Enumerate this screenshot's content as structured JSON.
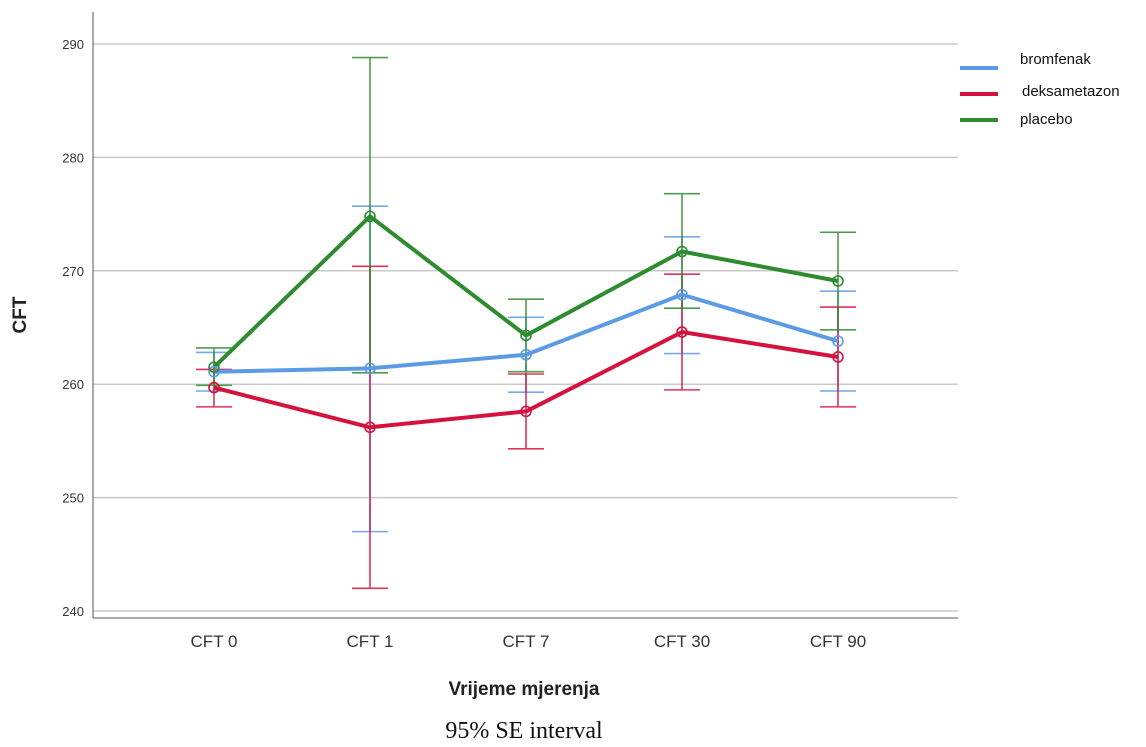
{
  "chart_data": {
    "type": "line",
    "categories": [
      "CFT 0",
      "CFT 1",
      "CFT 7",
      "CFT 30",
      "CFT 90"
    ],
    "xlabel": "Vrijeme mjerenja",
    "ylabel": "CFT",
    "ylim": [
      240,
      291
    ],
    "yticks": [
      240,
      250,
      260,
      270,
      280,
      290
    ],
    "grid": true,
    "legend_position": "top-right",
    "caption": "95% SE interval",
    "series": [
      {
        "name": "bromfenak",
        "color": "#5B9BE6",
        "values": [
          261.1,
          261.4,
          262.6,
          267.9,
          263.8
        ],
        "lower": [
          259.4,
          247.0,
          259.3,
          262.7,
          259.4
        ],
        "upper": [
          262.8,
          275.7,
          265.9,
          273.0,
          268.2
        ]
      },
      {
        "name": "deksametazon",
        "color": "#D5123D",
        "values": [
          259.7,
          256.2,
          257.6,
          264.6,
          262.4
        ],
        "lower": [
          258.0,
          242.0,
          254.3,
          259.5,
          258.0
        ],
        "upper": [
          261.3,
          270.4,
          260.9,
          269.7,
          266.8
        ]
      },
      {
        "name": "placebo",
        "color": "#2E8B2E",
        "values": [
          261.5,
          274.8,
          264.3,
          271.7,
          269.1
        ],
        "lower": [
          259.9,
          261.0,
          261.1,
          266.7,
          264.8
        ],
        "upper": [
          263.2,
          288.8,
          267.5,
          276.8,
          273.4
        ]
      }
    ]
  }
}
